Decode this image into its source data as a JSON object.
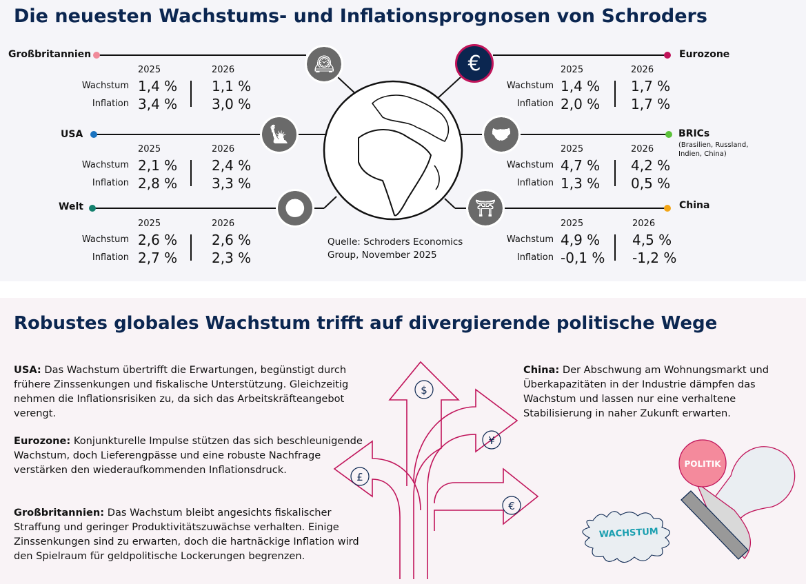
{
  "title": "Die neuesten Wachstums- und Inflationsprognosen von Schroders",
  "years": [
    "2025",
    "2026"
  ],
  "row_labels": [
    "Wachstum",
    "Inflation"
  ],
  "regions": [
    {
      "name": "Großbritannien",
      "icon": "big-ben-icon",
      "color": "#f08a9a",
      "growth": [
        "1,4 %",
        "1,1 %"
      ],
      "inflation": [
        "3,4 %",
        "3,0 %"
      ]
    },
    {
      "name": "USA",
      "icon": "statue-of-liberty-icon",
      "color": "#1a73c0",
      "growth": [
        "2,1 %",
        "2,4 %"
      ],
      "inflation": [
        "2,8 %",
        "3,3 %"
      ]
    },
    {
      "name": "Welt",
      "icon": "globe-icon",
      "color": "#14806e",
      "growth": [
        "2,6 %",
        "2,6 %"
      ],
      "inflation": [
        "2,7 %",
        "2,3 %"
      ]
    },
    {
      "name": "Eurozone",
      "icon": "euro-icon",
      "color": "#c0145a",
      "growth": [
        "1,4 %",
        "1,7 %"
      ],
      "inflation": [
        "2,0 %",
        "1,7 %"
      ]
    },
    {
      "name": "BRICs",
      "subtitle": "(Brasilien, Russland, Indien, China)",
      "icon": "handshake-icon",
      "color": "#5cc23a",
      "growth": [
        "4,7 %",
        "4,2 %"
      ],
      "inflation": [
        "1,3 %",
        "0,5 %"
      ]
    },
    {
      "name": "China",
      "icon": "pagoda-icon",
      "color": "#f2a516",
      "growth": [
        "4,9 %",
        "4,5 %"
      ],
      "inflation": [
        "-0,1 %",
        "-1,2 %"
      ]
    }
  ],
  "source": "Quelle: Schroders Economics Group, November 2025",
  "section2_title": "Robustes globales Wachstum trifft auf divergierende politische Wege",
  "paragraphs": [
    {
      "lead": "USA:",
      "text": " Das Wachstum übertrifft die Erwartungen, begünstigt durch frühere Zinssenkungen und fiskalische Unterstützung. Gleichzeitig nehmen die Inflationsrisiken zu, da sich das Arbeitskräfteangebot verengt."
    },
    {
      "lead": "Eurozone:",
      "text": " Konjunkturelle Impulse stützen das sich beschleunigende Wachstum, doch Lieferengpässe und eine robuste Nachfrage verstärken den wiederaufkommenden Inflationsdruck."
    },
    {
      "lead": "Großbritannien:",
      "text": " Das Wachstum bleibt angesichts fiskalischer Straffung und geringer Produktivitätszuwächse verhalten. Einige Zinssenkungen sind zu erwarten, doch die hartnäckige Inflation wird den Spielraum für geldpolitische Lockerungen begrenzen."
    },
    {
      "lead": "China:",
      "text": " Der Abschwung am Wohnungsmarkt und Überkapazitäten in der Industrie dämpfen das Wachstum und lassen nur eine verhaltene Stabilisierung in naher Zukunft erwarten."
    }
  ],
  "illustration": {
    "currency_symbols": [
      "$",
      "¥",
      "£",
      "€"
    ],
    "stamp_label": "POLITIK",
    "stamp_imprint": "WACHSTUM"
  },
  "colors": {
    "navy": "#0b2650",
    "pink": "#c0145a",
    "teal": "#1a9fb0"
  }
}
